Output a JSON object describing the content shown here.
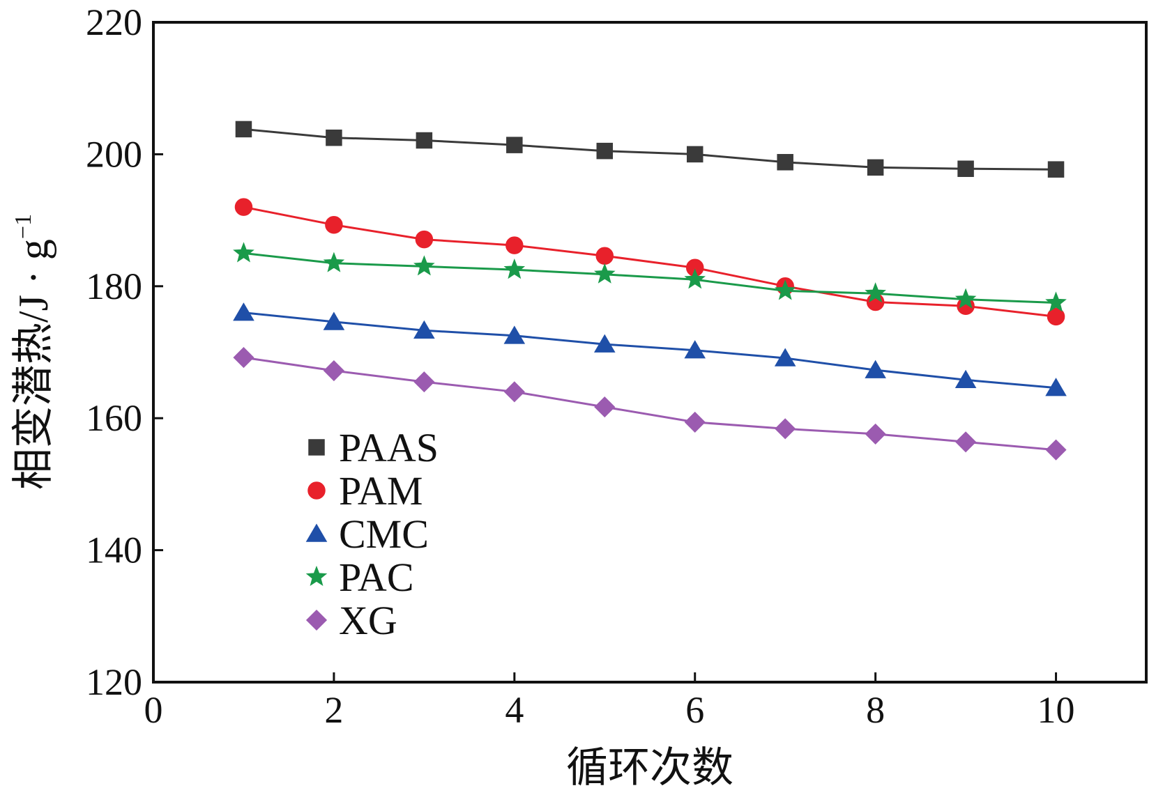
{
  "chart_data": {
    "type": "line",
    "title": "",
    "xlabel": "循环次数",
    "ylabel": "相变潜热/J · g",
    "ylabel_superscript": "−1",
    "xlim": [
      0,
      11
    ],
    "ylim": [
      120,
      220
    ],
    "xticks": [
      0,
      2,
      4,
      6,
      8,
      10
    ],
    "yticks": [
      120,
      140,
      160,
      180,
      200,
      220
    ],
    "grid": false,
    "legend_position": "bottom-left",
    "x": [
      1,
      2,
      3,
      4,
      5,
      6,
      7,
      8,
      9,
      10
    ],
    "series": [
      {
        "name": "PAAS",
        "color": "#3a3a3a",
        "marker": "square",
        "values": [
          203.8,
          202.5,
          202.1,
          201.4,
          200.5,
          200.0,
          198.8,
          198.0,
          197.8,
          197.7
        ]
      },
      {
        "name": "PAM",
        "color": "#e8212b",
        "marker": "circle",
        "values": [
          192.0,
          189.3,
          187.1,
          186.2,
          184.6,
          182.8,
          180.0,
          177.6,
          177.0,
          175.4
        ]
      },
      {
        "name": "CMC",
        "color": "#1f4fa8",
        "marker": "triangle",
        "values": [
          176.0,
          174.6,
          173.3,
          172.5,
          171.2,
          170.3,
          169.1,
          167.3,
          165.8,
          164.6
        ]
      },
      {
        "name": "PAC",
        "color": "#1a9a4a",
        "marker": "star",
        "values": [
          185.0,
          183.5,
          183.0,
          182.5,
          181.8,
          181.0,
          179.3,
          178.9,
          178.0,
          177.5
        ]
      },
      {
        "name": "XG",
        "color": "#9b5bb0",
        "marker": "diamond",
        "values": [
          169.2,
          167.2,
          165.5,
          164.0,
          161.7,
          159.4,
          158.4,
          157.6,
          156.4,
          155.2
        ]
      }
    ]
  }
}
